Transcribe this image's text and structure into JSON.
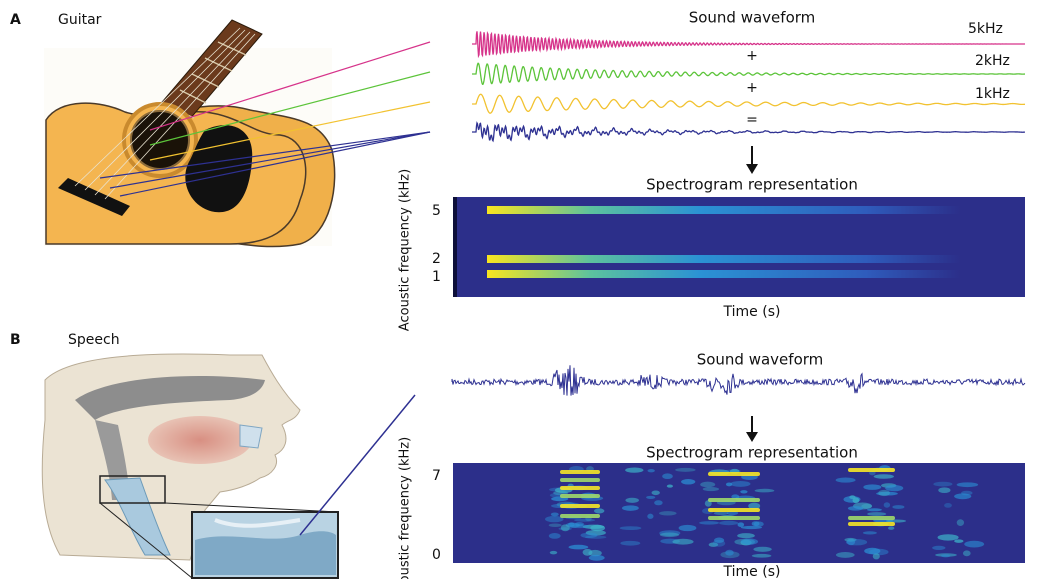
{
  "panels": [
    {
      "letter": "A",
      "title": "Guitar",
      "waveform_title": "Sound waveform",
      "waves": [
        {
          "label": "5kHz"
        },
        {
          "label": "2kHz"
        },
        {
          "label": "1kHz"
        }
      ],
      "operators": [
        "+",
        "+",
        "="
      ],
      "spectrogram_title": "Spectrogram representation",
      "y_label": "Acoustic frequency (kHz)",
      "y_ticks": [
        "5",
        "2",
        "1"
      ],
      "x_label": "Time (s)"
    },
    {
      "letter": "B",
      "title": "Speech",
      "waveform_title": "Sound waveform",
      "spectrogram_title": "Spectrogram representation",
      "y_label": "Acoustic frequency (kHz)",
      "y_ticks": [
        "7",
        "0"
      ],
      "x_label": "Time (s)"
    }
  ]
}
